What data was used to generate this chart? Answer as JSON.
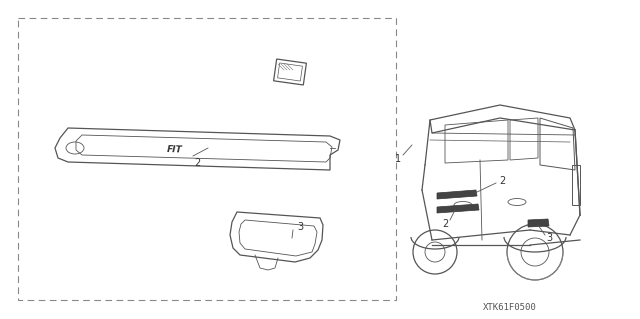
{
  "bg_color": "#ffffff",
  "line_color": "#555555",
  "label_color": "#333333",
  "watermark": "XTK61F0500",
  "fig_width": 6.4,
  "fig_height": 3.19,
  "dpi": 100
}
